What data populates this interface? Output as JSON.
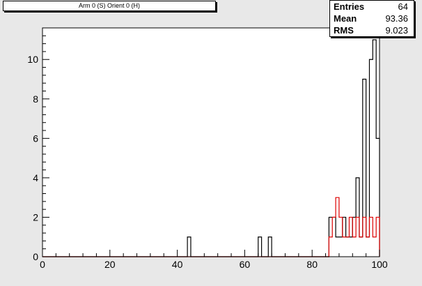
{
  "title": "Arm 0 (S) Orient 0 (H)",
  "stats": [
    {
      "key": "Entries",
      "value": "64"
    },
    {
      "key": "Mean",
      "value": "93.36"
    },
    {
      "key": "RMS",
      "value": "9.023"
    }
  ],
  "chart_data": {
    "type": "histogram",
    "xlim": [
      0,
      100
    ],
    "ylim": [
      0,
      11.6
    ],
    "bin_width": 1,
    "x_ticks": [
      0,
      20,
      40,
      60,
      80,
      100
    ],
    "x_tick_labels": [
      "0",
      "20",
      "40",
      "60",
      "80",
      "100"
    ],
    "y_ticks": [
      0,
      2,
      4,
      6,
      8,
      10
    ],
    "y_tick_labels": [
      "0",
      "2",
      "4",
      "6",
      "8",
      "10"
    ],
    "grid": false,
    "series": [
      {
        "color": "#000000",
        "bins": [
          {
            "x": 43,
            "y": 1
          },
          {
            "x": 64,
            "y": 1
          },
          {
            "x": 67,
            "y": 1
          },
          {
            "x": 85,
            "y": 2
          },
          {
            "x": 86,
            "y": 2
          },
          {
            "x": 87,
            "y": 1
          },
          {
            "x": 88,
            "y": 1
          },
          {
            "x": 89,
            "y": 2
          },
          {
            "x": 90,
            "y": 1
          },
          {
            "x": 91,
            "y": 1
          },
          {
            "x": 92,
            "y": 2
          },
          {
            "x": 93,
            "y": 4
          },
          {
            "x": 94,
            "y": 1
          },
          {
            "x": 95,
            "y": 9
          },
          {
            "x": 96,
            "y": 1
          },
          {
            "x": 97,
            "y": 10
          },
          {
            "x": 98,
            "y": 11
          },
          {
            "x": 99,
            "y": 6
          }
        ]
      },
      {
        "color": "#dd0000",
        "bins": [
          {
            "x": 85,
            "y": 1
          },
          {
            "x": 86,
            "y": 2
          },
          {
            "x": 87,
            "y": 3
          },
          {
            "x": 88,
            "y": 2
          },
          {
            "x": 89,
            "y": 1
          },
          {
            "x": 90,
            "y": 1
          },
          {
            "x": 91,
            "y": 2
          },
          {
            "x": 92,
            "y": 1
          },
          {
            "x": 93,
            "y": 2
          },
          {
            "x": 94,
            "y": 1
          },
          {
            "x": 95,
            "y": 2
          },
          {
            "x": 96,
            "y": 1
          },
          {
            "x": 97,
            "y": 2
          },
          {
            "x": 98,
            "y": 1
          },
          {
            "x": 99,
            "y": 2
          }
        ]
      }
    ]
  }
}
